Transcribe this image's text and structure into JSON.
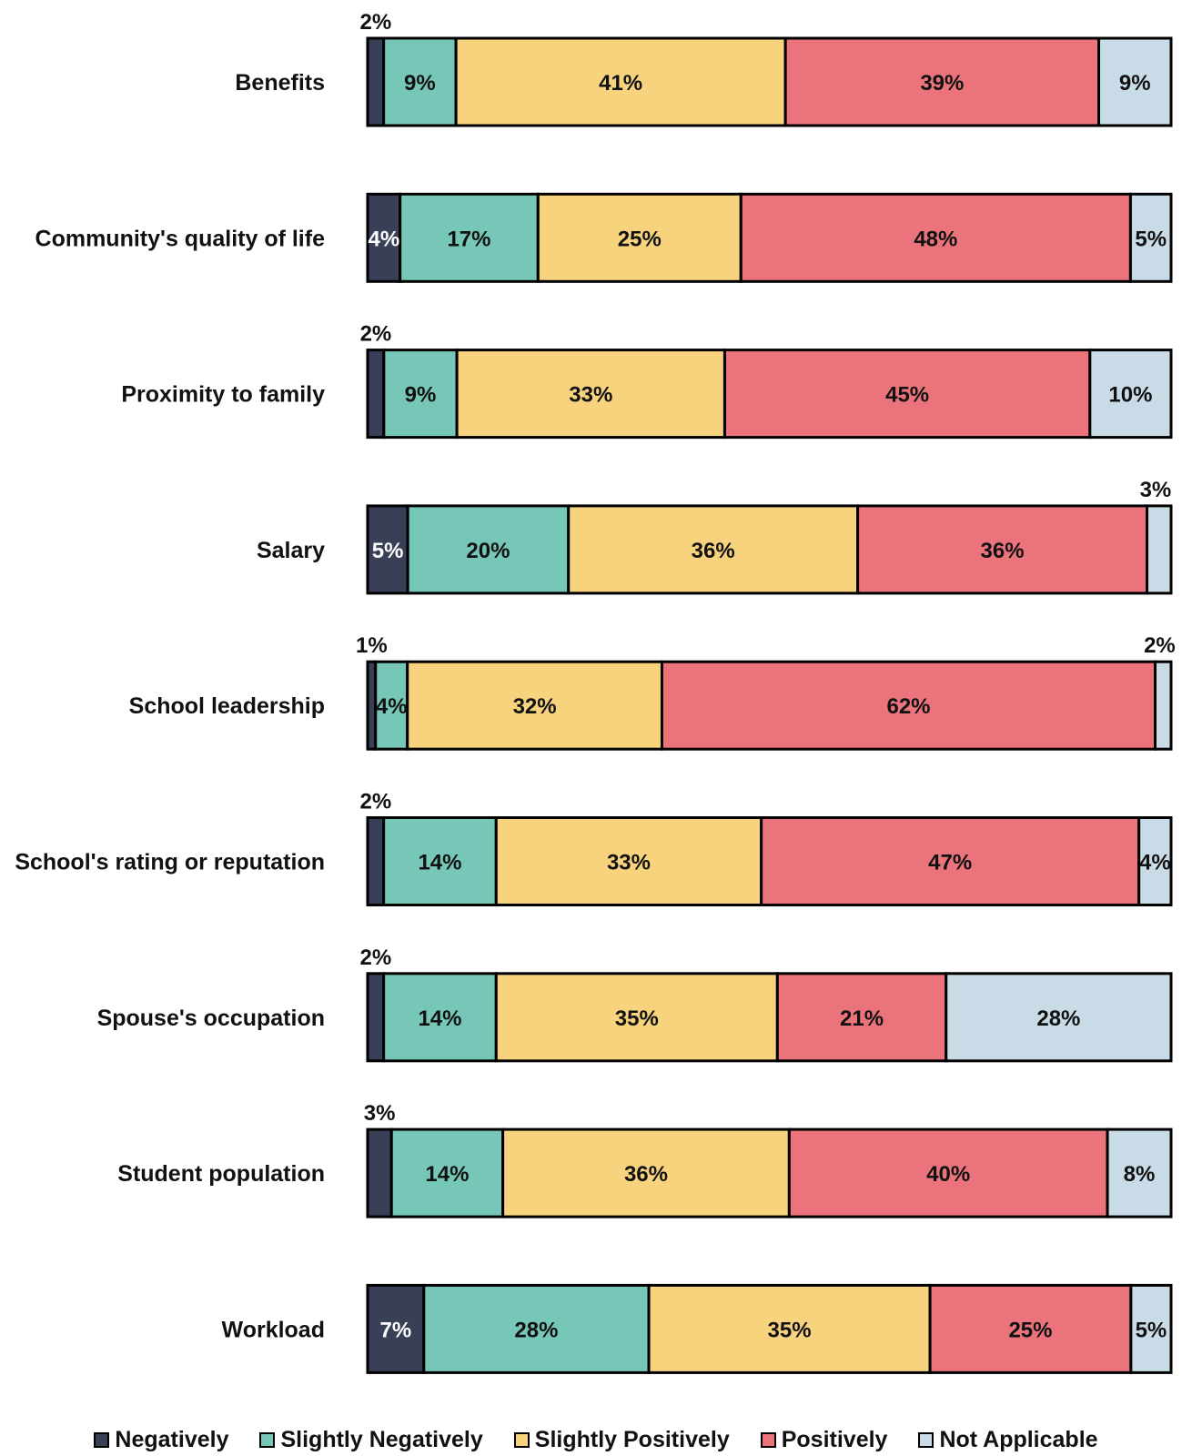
{
  "chart_data": {
    "type": "bar",
    "orientation": "horizontal",
    "stacked": true,
    "categories": [
      "Benefits",
      "Community's quality of life",
      "Proximity to family",
      "Salary",
      "School leadership",
      "School's rating or reputation",
      "Spouse's occupation",
      "Student population",
      "Workload"
    ],
    "series": [
      {
        "name": "Negatively",
        "color": "#3a3f58",
        "values": [
          2,
          4,
          2,
          5,
          1,
          2,
          2,
          3,
          7
        ]
      },
      {
        "name": "Slightly Negatively",
        "color": "#76c7b7",
        "values": [
          9,
          17,
          9,
          20,
          4,
          14,
          14,
          14,
          28
        ]
      },
      {
        "name": "Slightly Positively",
        "color": "#f7d37e",
        "values": [
          41,
          25,
          33,
          36,
          32,
          33,
          35,
          36,
          35
        ]
      },
      {
        "name": "Positively",
        "color": "#eb737b",
        "values": [
          39,
          48,
          45,
          36,
          62,
          47,
          21,
          40,
          25
        ]
      },
      {
        "name": "Not Applicable",
        "color": "#c9dbe6",
        "values": [
          9,
          5,
          10,
          3,
          2,
          4,
          28,
          8,
          5
        ]
      }
    ],
    "value_format": "{v}%",
    "xlim": [
      0,
      100
    ],
    "grid": false,
    "legend_position": "bottom"
  }
}
